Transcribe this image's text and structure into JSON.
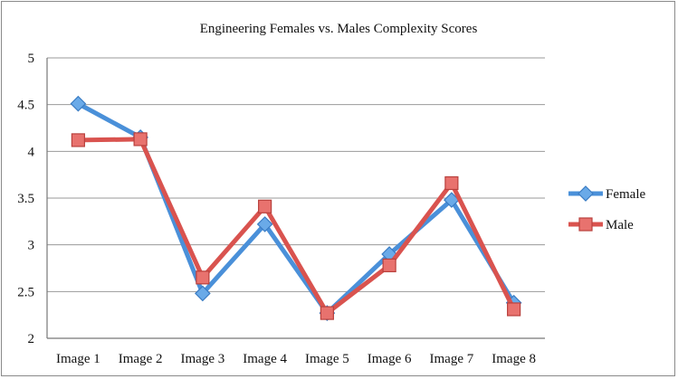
{
  "chart_data": {
    "type": "line",
    "title": "Engineering Females vs. Males Complexity Scores",
    "xlabel": "",
    "ylabel": "",
    "categories": [
      "Image 1",
      "Image 2",
      "Image 3",
      "Image 4",
      "Image 5",
      "Image 6",
      "Image 7",
      "Image 8"
    ],
    "ylim": [
      2,
      5
    ],
    "yticks": [
      "2",
      "2.5",
      "3",
      "3.5",
      "4",
      "4.5",
      "5"
    ],
    "grid": true,
    "legend_position": "right",
    "series": [
      {
        "name": "Female",
        "color": "#4a90d9",
        "marker": "diamond",
        "values": [
          4.51,
          4.15,
          2.48,
          3.22,
          2.27,
          2.9,
          3.48,
          2.38
        ]
      },
      {
        "name": "Male",
        "color": "#d9534f",
        "marker": "square",
        "values": [
          4.12,
          4.13,
          2.65,
          3.41,
          2.27,
          2.78,
          3.66,
          2.31
        ]
      }
    ]
  }
}
